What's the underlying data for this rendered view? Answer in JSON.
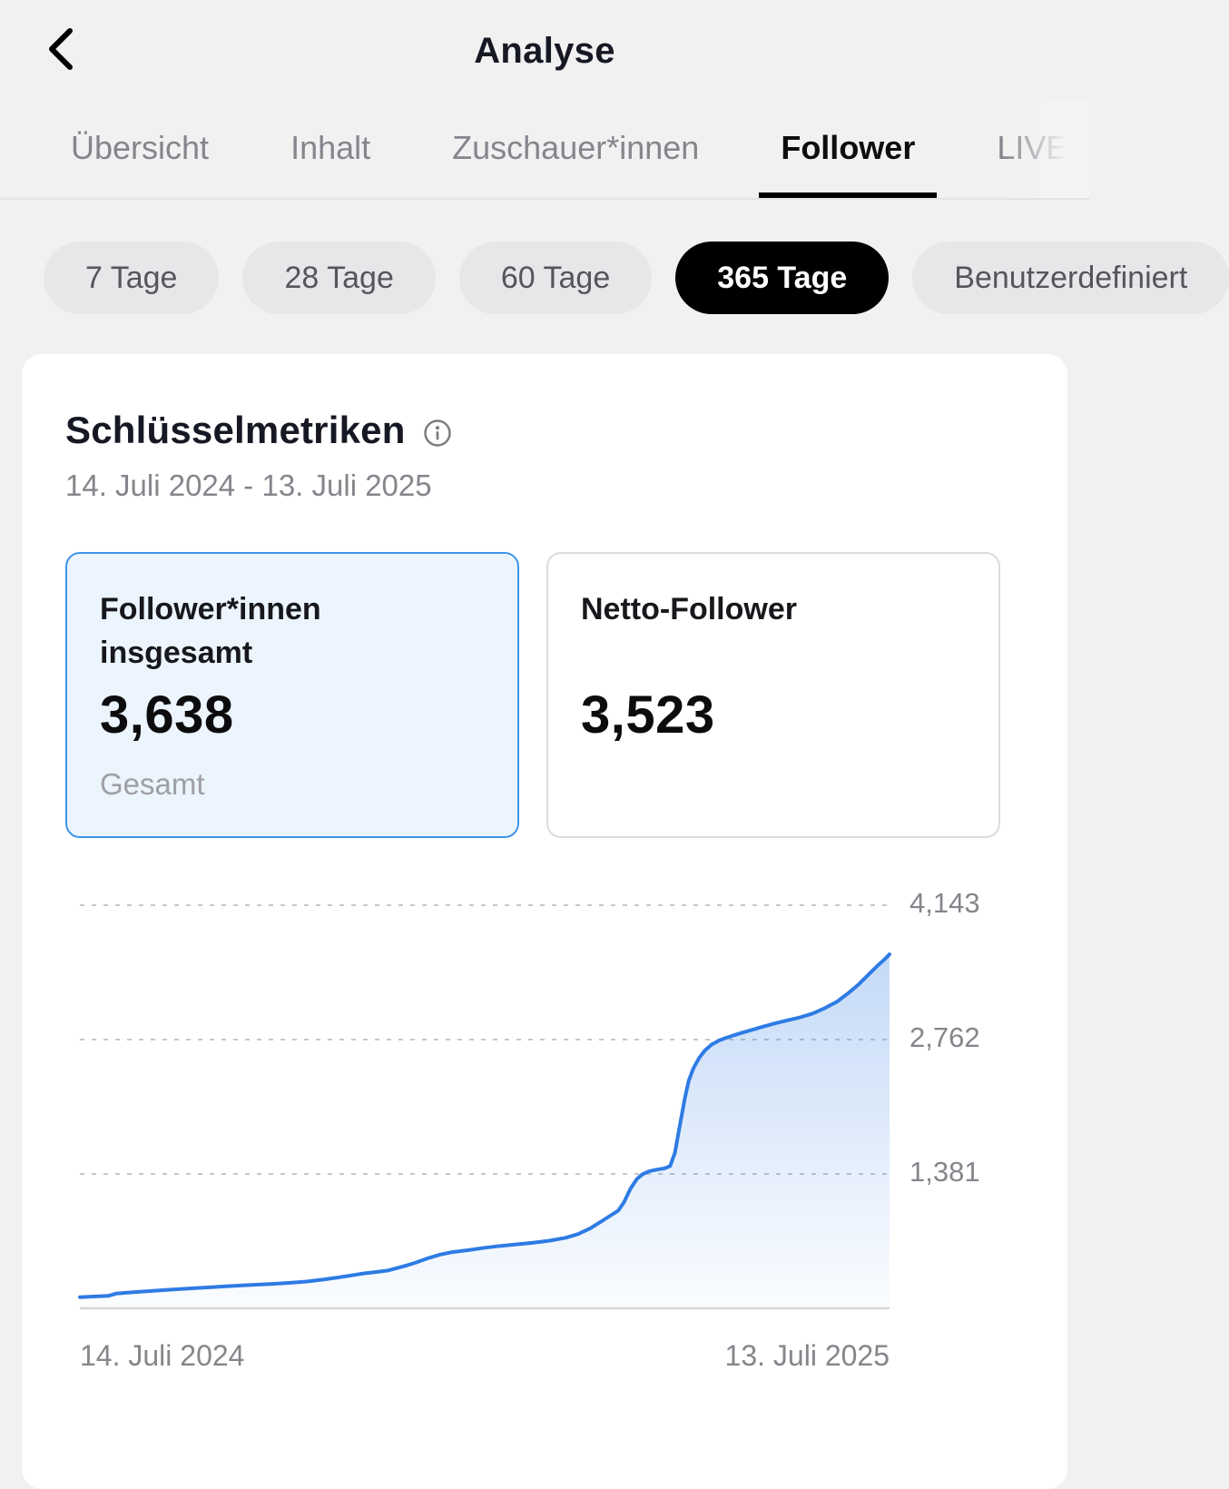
{
  "header": {
    "title": "Analyse"
  },
  "tabs": [
    {
      "label": "Übersicht",
      "active": false
    },
    {
      "label": "Inhalt",
      "active": false
    },
    {
      "label": "Zuschauer*innen",
      "active": false
    },
    {
      "label": "Follower",
      "active": true
    },
    {
      "label": "LIVE",
      "active": false,
      "clipped": true
    }
  ],
  "range_pills": [
    {
      "label": "7 Tage",
      "active": false
    },
    {
      "label": "28 Tage",
      "active": false
    },
    {
      "label": "60 Tage",
      "active": false
    },
    {
      "label": "365 Tage",
      "active": true
    },
    {
      "label": "Benutzerdefiniert",
      "active": false,
      "clipped": true
    }
  ],
  "metrics": {
    "title": "Schlüsselmetriken",
    "info_icon": "info-circle-icon",
    "date_range": "14. Juli 2024 - 13. Juli 2025",
    "cards": [
      {
        "label": "Follower*innen insgesamt",
        "value": "3,638",
        "sublabel": "Gesamt",
        "selected": true
      },
      {
        "label": "Netto-Follower",
        "value": "3,523",
        "sublabel": "",
        "selected": false
      }
    ]
  },
  "chart_data": {
    "type": "area",
    "x_start_label": "14. Juli 2024",
    "x_end_label": "13. Juli 2025",
    "x_unit": "fraction_of_365_day_range",
    "ylim": [
      0,
      4350
    ],
    "y_ticks": [
      1381,
      2762,
      4143
    ],
    "y_tick_labels": [
      "1,381",
      "2,762",
      "4,143"
    ],
    "grid": "dashed-horizontal, labels right",
    "start_value": 115,
    "end_value": 3638,
    "series": [
      {
        "name": "Follower*innen insgesamt",
        "points": [
          [
            0,
            115
          ],
          [
            0.02,
            122
          ],
          [
            0.035,
            128
          ],
          [
            0.045,
            152
          ],
          [
            0.06,
            162
          ],
          [
            0.08,
            174
          ],
          [
            0.1,
            186
          ],
          [
            0.12,
            196
          ],
          [
            0.14,
            206
          ],
          [
            0.16,
            216
          ],
          [
            0.18,
            226
          ],
          [
            0.2,
            235
          ],
          [
            0.22,
            244
          ],
          [
            0.24,
            252
          ],
          [
            0.26,
            262
          ],
          [
            0.28,
            275
          ],
          [
            0.3,
            295
          ],
          [
            0.32,
            318
          ],
          [
            0.335,
            338
          ],
          [
            0.35,
            358
          ],
          [
            0.365,
            372
          ],
          [
            0.38,
            388
          ],
          [
            0.4,
            432
          ],
          [
            0.415,
            470
          ],
          [
            0.43,
            515
          ],
          [
            0.445,
            552
          ],
          [
            0.46,
            578
          ],
          [
            0.48,
            598
          ],
          [
            0.5,
            622
          ],
          [
            0.52,
            642
          ],
          [
            0.54,
            658
          ],
          [
            0.56,
            675
          ],
          [
            0.58,
            695
          ],
          [
            0.6,
            725
          ],
          [
            0.615,
            762
          ],
          [
            0.63,
            820
          ],
          [
            0.645,
            898
          ],
          [
            0.655,
            952
          ],
          [
            0.665,
            1005
          ],
          [
            0.672,
            1090
          ],
          [
            0.68,
            1230
          ],
          [
            0.688,
            1330
          ],
          [
            0.695,
            1378
          ],
          [
            0.703,
            1408
          ],
          [
            0.712,
            1425
          ],
          [
            0.722,
            1438
          ],
          [
            0.729,
            1462
          ],
          [
            0.735,
            1600
          ],
          [
            0.741,
            1880
          ],
          [
            0.747,
            2150
          ],
          [
            0.752,
            2340
          ],
          [
            0.758,
            2470
          ],
          [
            0.765,
            2575
          ],
          [
            0.772,
            2650
          ],
          [
            0.78,
            2710
          ],
          [
            0.79,
            2755
          ],
          [
            0.8,
            2785
          ],
          [
            0.815,
            2825
          ],
          [
            0.83,
            2862
          ],
          [
            0.845,
            2898
          ],
          [
            0.86,
            2932
          ],
          [
            0.875,
            2962
          ],
          [
            0.89,
            2992
          ],
          [
            0.905,
            3030
          ],
          [
            0.92,
            3085
          ],
          [
            0.935,
            3150
          ],
          [
            0.95,
            3245
          ],
          [
            0.962,
            3330
          ],
          [
            0.974,
            3430
          ],
          [
            0.985,
            3520
          ],
          [
            0.993,
            3580
          ],
          [
            1,
            3638
          ]
        ]
      }
    ]
  },
  "colors": {
    "accent_blue": "#2e7be4",
    "selected_card_border": "#3c95e8",
    "selected_card_bg": "#ecf5fd",
    "active_pill_bg": "#000000",
    "gridline": "#c6c6c9",
    "baseline": "#d7d7d9",
    "muted_text": "#85868c"
  }
}
